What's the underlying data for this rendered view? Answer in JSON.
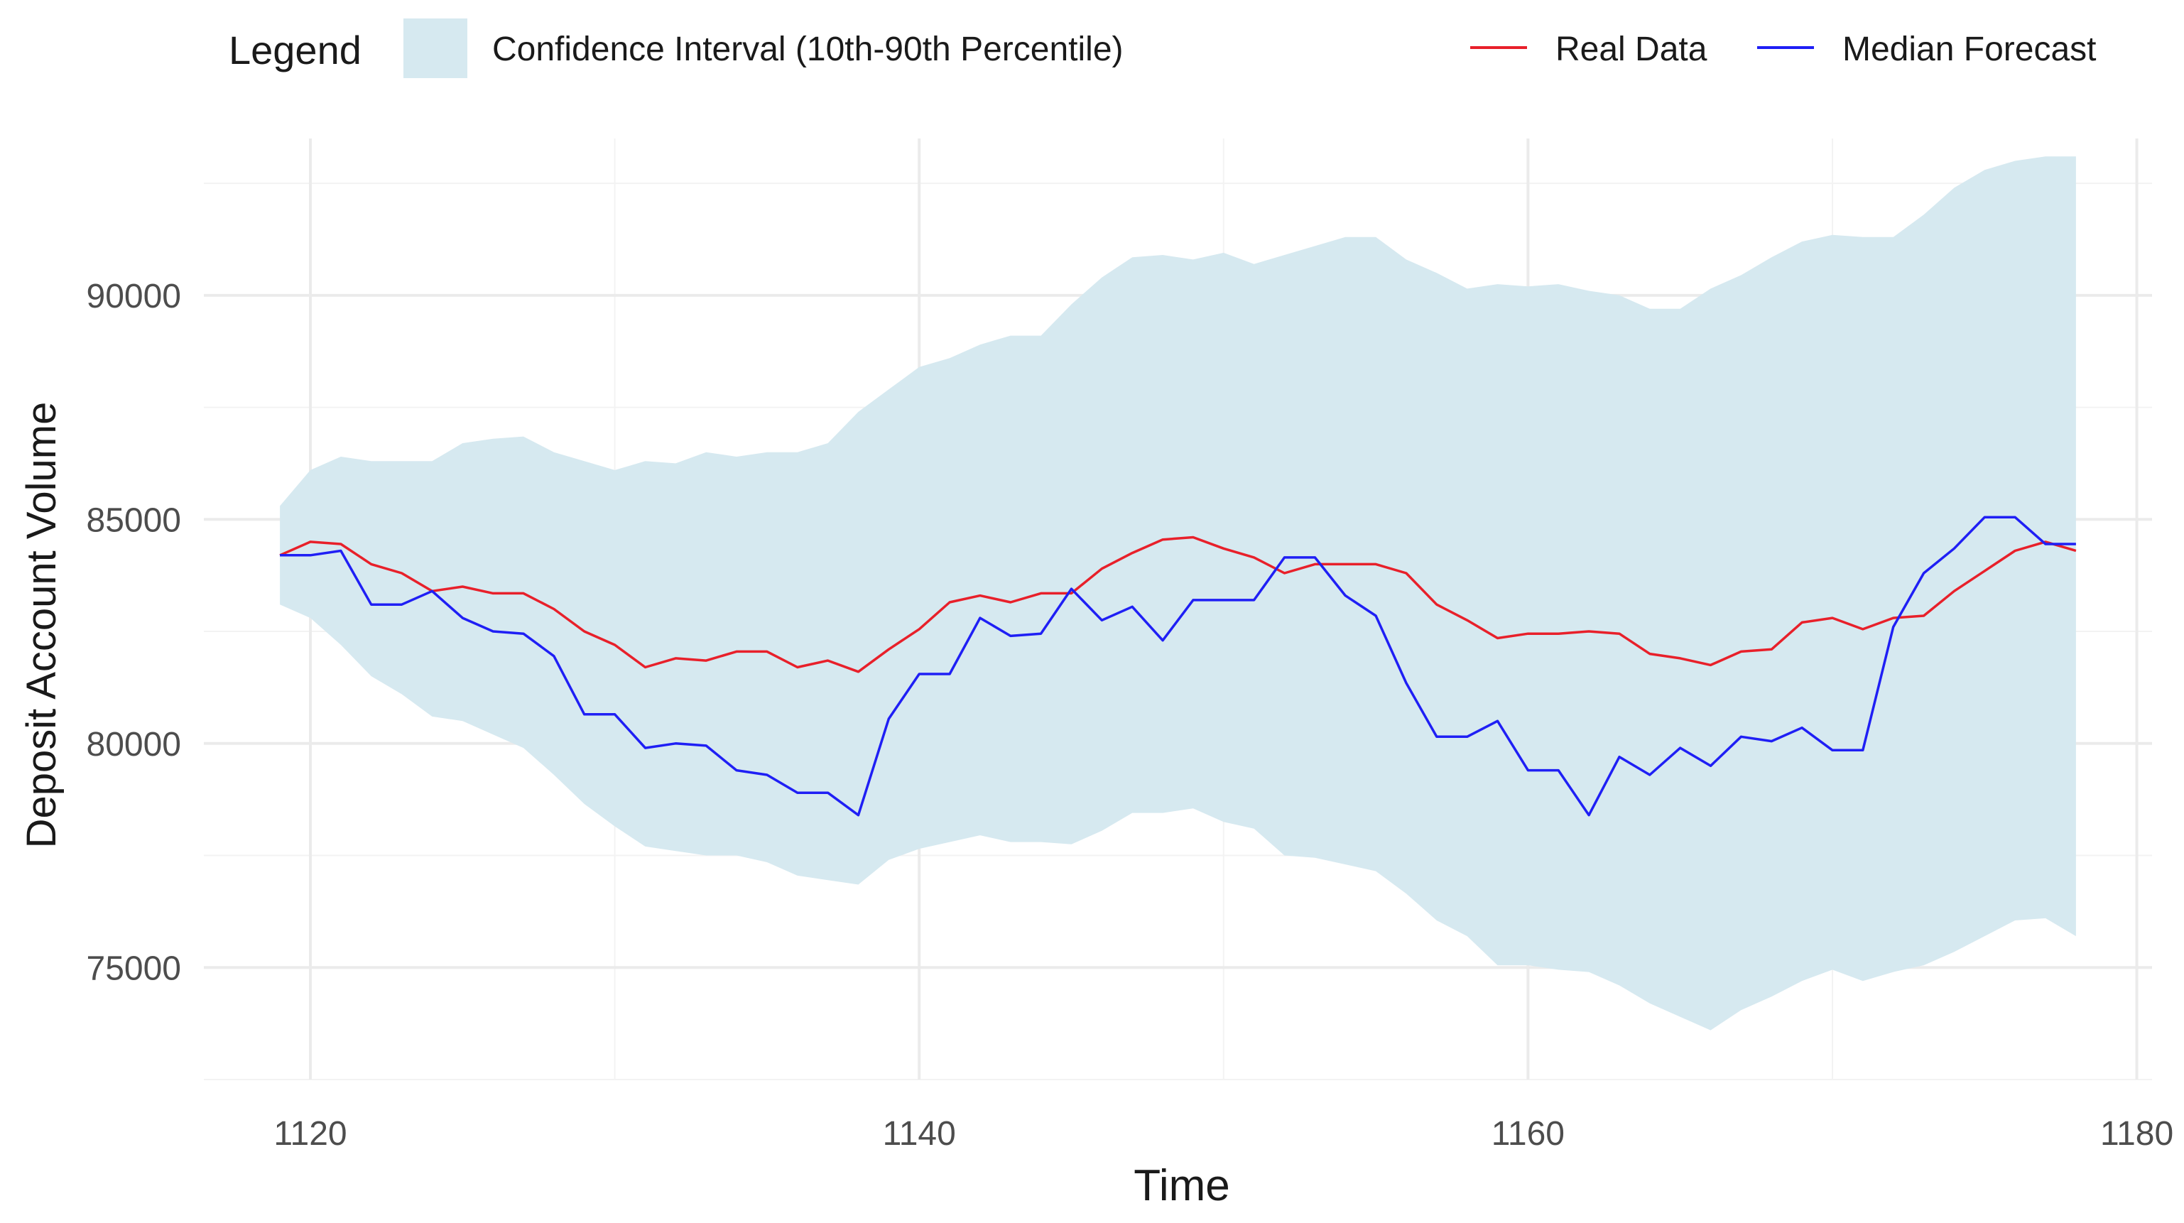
{
  "legend": {
    "title": "Legend",
    "ribbon_label": "Confidence Interval (10th-90th Percentile)",
    "real_label": "Real Data",
    "median_label": "Median Forecast"
  },
  "colors": {
    "ribbon": "#d6e9f0",
    "real": "#e8202a",
    "median": "#1f1ff5",
    "background": "#ffffff"
  },
  "chart_data": {
    "type": "line",
    "title": "",
    "xlabel": "Time",
    "ylabel": "Deposit Account Volume",
    "xlim": [
      1116.5,
      1180.5
    ],
    "ylim": [
      72500,
      93500
    ],
    "grid": true,
    "x_ticks": [
      1120,
      1140,
      1160,
      1180
    ],
    "y_ticks": [
      75000,
      80000,
      85000,
      90000
    ],
    "legend_position": "top",
    "x": [
      1119,
      1120,
      1121,
      1122,
      1123,
      1124,
      1125,
      1126,
      1127,
      1128,
      1129,
      1130,
      1131,
      1132,
      1133,
      1134,
      1135,
      1136,
      1137,
      1138,
      1139,
      1140,
      1141,
      1142,
      1143,
      1144,
      1145,
      1146,
      1147,
      1148,
      1149,
      1150,
      1151,
      1152,
      1153,
      1154,
      1155,
      1156,
      1157,
      1158,
      1159,
      1160,
      1161,
      1162,
      1163,
      1164,
      1165,
      1166,
      1167,
      1168,
      1169,
      1170,
      1171,
      1172,
      1173,
      1174,
      1175,
      1176,
      1177,
      1178
    ],
    "series": [
      {
        "name": "Real Data",
        "values": [
          84200,
          84500,
          84450,
          84000,
          83800,
          83400,
          83500,
          83350,
          83350,
          83000,
          82500,
          82200,
          81700,
          81900,
          81850,
          82050,
          82050,
          81700,
          81850,
          81600,
          82100,
          82550,
          83150,
          83300,
          83150,
          83350,
          83350,
          83900,
          84250,
          84550,
          84600,
          84350,
          84150,
          83800,
          84000,
          84000,
          84000,
          83800,
          83100,
          82750,
          82350,
          82450,
          82450,
          82500,
          82450,
          82000,
          81900,
          81750,
          82050,
          82100,
          82700,
          82800,
          82550,
          82800,
          82850,
          83400,
          83850,
          84300,
          84500,
          84300
        ]
      },
      {
        "name": "Median Forecast",
        "values": [
          84200,
          84200,
          84300,
          83100,
          83100,
          83400,
          82800,
          82500,
          82450,
          81950,
          80650,
          80650,
          79900,
          80000,
          79950,
          79400,
          79300,
          78900,
          78900,
          78400,
          80550,
          81550,
          81550,
          82800,
          82400,
          82450,
          83450,
          82750,
          83050,
          82300,
          83200,
          83200,
          83200,
          84150,
          84150,
          83300,
          82850,
          81350,
          80150,
          80150,
          80500,
          79400,
          79400,
          78400,
          79700,
          79300,
          79900,
          79500,
          80150,
          80050,
          80350,
          79850,
          79850,
          82600,
          83800,
          84350,
          85050,
          85050,
          84450,
          84450
        ]
      }
    ],
    "ribbon": {
      "name": "Confidence Interval (10th-90th Percentile)",
      "lower": [
        83100,
        82800,
        82200,
        81500,
        81100,
        80600,
        80500,
        80200,
        79900,
        79300,
        78650,
        78150,
        77700,
        77600,
        77500,
        77500,
        77350,
        77050,
        76950,
        76850,
        77400,
        77650,
        77800,
        77950,
        77800,
        77800,
        77750,
        78050,
        78450,
        78450,
        78550,
        78250,
        78100,
        77500,
        77450,
        77300,
        77150,
        76650,
        76050,
        75700,
        75050,
        75050,
        74950,
        74900,
        74600,
        74200,
        73900,
        73600,
        74050,
        74350,
        74700,
        74950,
        74700,
        74900,
        75050,
        75350,
        75700,
        76050,
        76100,
        75700
      ],
      "upper": [
        85300,
        86100,
        86400,
        86300,
        86300,
        86300,
        86700,
        86800,
        86850,
        86500,
        86300,
        86100,
        86300,
        86250,
        86500,
        86400,
        86500,
        86500,
        86700,
        87400,
        87900,
        88400,
        88600,
        88900,
        89100,
        89100,
        89800,
        90400,
        90850,
        90900,
        90800,
        90950,
        90700,
        90900,
        91100,
        91300,
        91300,
        90800,
        90500,
        90150,
        90250,
        90200,
        90250,
        90100,
        90000,
        89700,
        89700,
        90150,
        90450,
        90850,
        91200,
        91350,
        91300,
        91300,
        91800,
        92400,
        92800,
        93000,
        93100,
        93100
      ]
    }
  }
}
